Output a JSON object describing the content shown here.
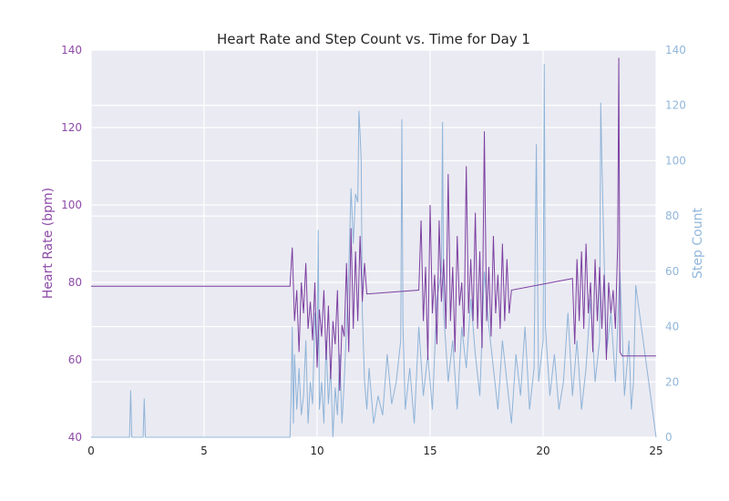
{
  "chart_data": {
    "type": "line",
    "title": "Heart Rate and Step Count vs. Time for Day 1",
    "xlabel": "",
    "ylabel": "Heart Rate (bpm)",
    "y2label": "Step Count",
    "xlim": [
      0,
      25
    ],
    "ylim": [
      40,
      140
    ],
    "y2lim": [
      0,
      140
    ],
    "xticks": [
      "0",
      "5",
      "10",
      "15",
      "20",
      "25"
    ],
    "yticks": [
      "40",
      "60",
      "80",
      "100",
      "120",
      "140"
    ],
    "y2ticks": [
      "0",
      "20",
      "40",
      "60",
      "80",
      "100",
      "120",
      "140"
    ],
    "grid": true,
    "colors": {
      "heart_rate": "#7b3fa0",
      "step_count": "#8fb4d8",
      "background": "#eaeaf2",
      "grid": "#ffffff"
    },
    "series": [
      {
        "axis": "left",
        "x": [
          0,
          8.8,
          8.9,
          9.0,
          9.1,
          9.2,
          9.3,
          9.4,
          9.5,
          9.6,
          9.7,
          9.8,
          9.9,
          10.0,
          10.1,
          10.2,
          10.3,
          10.4,
          10.5,
          10.6,
          10.7,
          10.8,
          10.9,
          11.0,
          11.1,
          11.2,
          11.3,
          11.4,
          11.5,
          11.6,
          11.7,
          11.8,
          11.9,
          12.0,
          12.1,
          12.2,
          14.5,
          14.6,
          14.7,
          14.8,
          14.9,
          15.0,
          15.1,
          15.2,
          15.3,
          15.4,
          15.5,
          15.6,
          15.7,
          15.8,
          15.9,
          16.0,
          16.1,
          16.2,
          16.3,
          16.4,
          16.5,
          16.6,
          16.7,
          16.8,
          16.9,
          17.0,
          17.1,
          17.2,
          17.3,
          17.4,
          17.5,
          17.6,
          17.7,
          17.8,
          17.9,
          18.0,
          18.1,
          18.2,
          18.3,
          18.4,
          18.5,
          18.6,
          21.3,
          21.4,
          21.5,
          21.6,
          21.7,
          21.8,
          21.9,
          22.0,
          22.1,
          22.2,
          22.3,
          22.4,
          22.5,
          22.6,
          22.7,
          22.8,
          22.9,
          23.0,
          23.1,
          23.2,
          23.3,
          23.35,
          23.4,
          23.5,
          23.7,
          25
        ],
        "values": [
          79,
          79,
          89,
          70,
          78,
          62,
          80,
          72,
          85,
          68,
          75,
          65,
          80,
          58,
          73,
          66,
          78,
          60,
          74,
          55,
          70,
          64,
          78,
          52,
          69,
          66,
          85,
          62,
          94,
          68,
          88,
          70,
          92,
          75,
          85,
          77,
          78,
          96,
          70,
          84,
          60,
          100,
          72,
          82,
          64,
          96,
          75,
          86,
          68,
          108,
          70,
          84,
          62,
          92,
          74,
          80,
          66,
          110,
          72,
          86,
          70,
          98,
          68,
          88,
          63,
          119,
          70,
          84,
          66,
          92,
          72,
          82,
          68,
          90,
          70,
          86,
          72,
          78,
          81,
          64,
          86,
          70,
          88,
          68,
          90,
          72,
          80,
          62,
          86,
          70,
          84,
          68,
          82,
          60,
          80,
          72,
          78,
          68,
          90,
          138,
          62,
          61,
          61,
          61
        ]
      },
      {
        "axis": "right",
        "x": [
          0,
          1.7,
          1.75,
          1.8,
          2.3,
          2.35,
          2.4,
          8.8,
          8.85,
          8.9,
          8.95,
          9.0,
          9.1,
          9.2,
          9.3,
          9.4,
          9.5,
          9.6,
          9.7,
          9.8,
          9.9,
          10.0,
          10.05,
          10.1,
          10.2,
          10.3,
          10.4,
          10.5,
          10.6,
          10.7,
          10.8,
          10.9,
          11.0,
          11.1,
          11.2,
          11.3,
          11.4,
          11.5,
          11.6,
          11.7,
          11.8,
          11.85,
          11.9,
          11.95,
          12.0,
          12.1,
          12.2,
          12.3,
          12.5,
          12.7,
          12.9,
          13.1,
          13.3,
          13.5,
          13.7,
          13.75,
          13.8,
          13.9,
          14.1,
          14.3,
          14.5,
          14.7,
          14.9,
          15.1,
          15.3,
          15.5,
          15.55,
          15.6,
          15.8,
          16.0,
          16.2,
          16.4,
          16.6,
          16.8,
          17.0,
          17.2,
          17.4,
          17.6,
          17.8,
          18.0,
          18.2,
          18.4,
          18.6,
          18.8,
          19.0,
          19.2,
          19.4,
          19.6,
          19.7,
          19.8,
          20.0,
          20.05,
          20.1,
          20.3,
          20.5,
          20.7,
          20.9,
          21.1,
          21.3,
          21.5,
          21.7,
          21.9,
          22.1,
          22.3,
          22.5,
          22.55,
          22.6,
          22.8,
          23.0,
          23.2,
          23.4,
          23.6,
          23.8,
          23.9,
          24.0,
          24.1,
          25
        ],
        "values": [
          0,
          0,
          17,
          0,
          0,
          14,
          0,
          0,
          15,
          40,
          5,
          30,
          10,
          25,
          8,
          15,
          35,
          5,
          20,
          12,
          45,
          30,
          75,
          10,
          20,
          5,
          35,
          12,
          25,
          0,
          18,
          8,
          30,
          5,
          20,
          40,
          60,
          90,
          70,
          88,
          85,
          118,
          110,
          100,
          45,
          20,
          10,
          25,
          5,
          15,
          8,
          30,
          12,
          20,
          35,
          115,
          40,
          10,
          25,
          5,
          40,
          15,
          30,
          10,
          50,
          60,
          114,
          45,
          20,
          35,
          10,
          40,
          25,
          50,
          30,
          15,
          60,
          40,
          25,
          10,
          35,
          20,
          5,
          30,
          15,
          40,
          10,
          25,
          106,
          20,
          35,
          135,
          40,
          15,
          30,
          10,
          20,
          45,
          15,
          35,
          10,
          25,
          50,
          20,
          35,
          121,
          100,
          30,
          45,
          20,
          60,
          15,
          35,
          10,
          20,
          55,
          0
        ]
      }
    ]
  }
}
